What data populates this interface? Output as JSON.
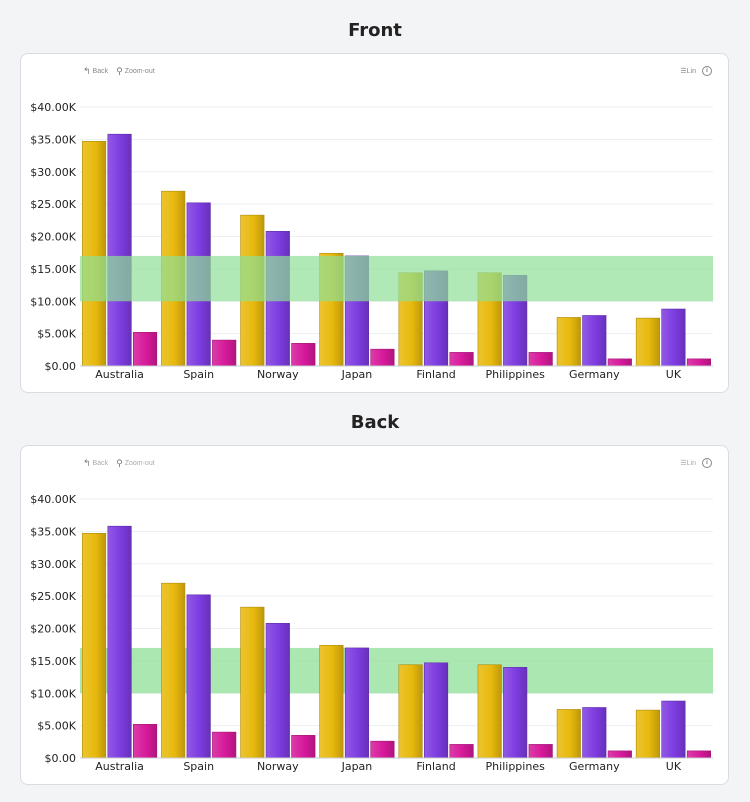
{
  "views": [
    {
      "title": "Front",
      "toolbar": {
        "back_label": "Back",
        "zoomout_label": "Zoom-out",
        "menu_label": "Lin"
      }
    },
    {
      "title": "Back",
      "toolbar": {
        "back_label": "Back",
        "zoomout_label": "Zoom-out",
        "menu_label": "Lin"
      }
    }
  ],
  "colors": {
    "series1": "#e8b90d",
    "series2": "#7d3ce0",
    "series3": "#d6199a",
    "band": "#8fdf95"
  },
  "chart_data": {
    "type": "bar",
    "categories": [
      "Australia",
      "Spain",
      "Norway",
      "Japan",
      "Finland",
      "Philippines",
      "Germany",
      "UK"
    ],
    "series": [
      {
        "values": [
          34700,
          27000,
          23300,
          17400,
          14400,
          14400,
          7500,
          7400
        ]
      },
      {
        "values": [
          35800,
          25200,
          20800,
          17000,
          14700,
          14000,
          7800,
          8800
        ]
      },
      {
        "values": [
          5200,
          4000,
          3500,
          2600,
          2100,
          2100,
          1100,
          1100
        ]
      }
    ],
    "ylim": [
      0,
      40000
    ],
    "yticks": [
      0,
      5000,
      10000,
      15000,
      20000,
      25000,
      30000,
      35000,
      40000
    ],
    "ytick_labels": [
      "$0.00",
      "$5.00K",
      "$10.00K",
      "$15.00K",
      "$20.00K",
      "$25.00K",
      "$30.00K",
      "$35.00K",
      "$40.00K"
    ],
    "band": {
      "from": 10000,
      "to": 17000
    },
    "grid": true,
    "xlabel": "",
    "ylabel": ""
  }
}
